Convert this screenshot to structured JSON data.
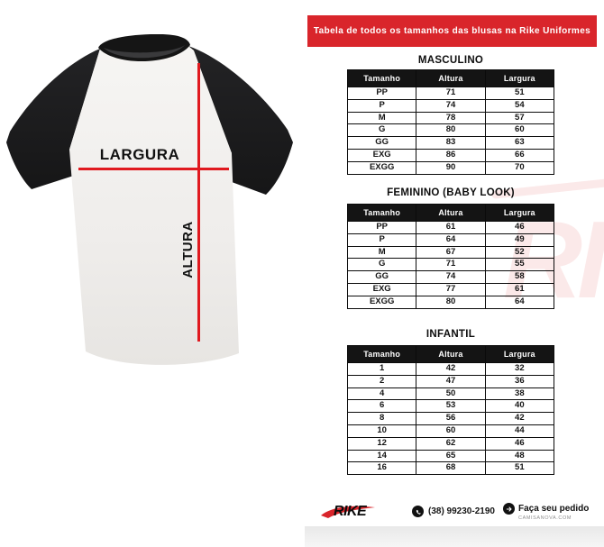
{
  "banner": {
    "text": "Tabela de todos os tamanhos das blusas na Rike Uniformes"
  },
  "shirt": {
    "width_label": "LARGURA",
    "height_label": "ALTURA"
  },
  "tables": [
    {
      "title": "MASCULINO",
      "headers": [
        "Tamanho",
        "Altura",
        "Largura"
      ],
      "rows": [
        [
          "PP",
          "71",
          "51"
        ],
        [
          "P",
          "74",
          "54"
        ],
        [
          "M",
          "78",
          "57"
        ],
        [
          "G",
          "80",
          "60"
        ],
        [
          "GG",
          "83",
          "63"
        ],
        [
          "EXG",
          "86",
          "66"
        ],
        [
          "EXGG",
          "90",
          "70"
        ]
      ]
    },
    {
      "title": "FEMININO (BABY LOOK)",
      "headers": [
        "Tamanho",
        "Altura",
        "Largura"
      ],
      "rows": [
        [
          "PP",
          "61",
          "46"
        ],
        [
          "P",
          "64",
          "49"
        ],
        [
          "M",
          "67",
          "52"
        ],
        [
          "G",
          "71",
          "55"
        ],
        [
          "GG",
          "74",
          "58"
        ],
        [
          "EXG",
          "77",
          "61"
        ],
        [
          "EXGG",
          "80",
          "64"
        ]
      ]
    },
    {
      "title": "INFANTIL",
      "headers": [
        "Tamanho",
        "Altura",
        "Largura"
      ],
      "rows": [
        [
          "1",
          "42",
          "32"
        ],
        [
          "2",
          "47",
          "36"
        ],
        [
          "4",
          "50",
          "38"
        ],
        [
          "6",
          "53",
          "40"
        ],
        [
          "8",
          "56",
          "42"
        ],
        [
          "10",
          "60",
          "44"
        ],
        [
          "12",
          "62",
          "46"
        ],
        [
          "14",
          "65",
          "48"
        ],
        [
          "16",
          "68",
          "51"
        ]
      ]
    }
  ],
  "watermark": {
    "brand": "RIKE"
  },
  "footer": {
    "brand": "RIKE",
    "phone": "(38) 99230-2190",
    "order_label": "Faça seu pedido",
    "order_site": "CAMISANOVA.COM"
  },
  "colors": {
    "accent_red": "#d9252b",
    "measure_line_red": "#e0191f",
    "table_header_bg": "#141414"
  }
}
